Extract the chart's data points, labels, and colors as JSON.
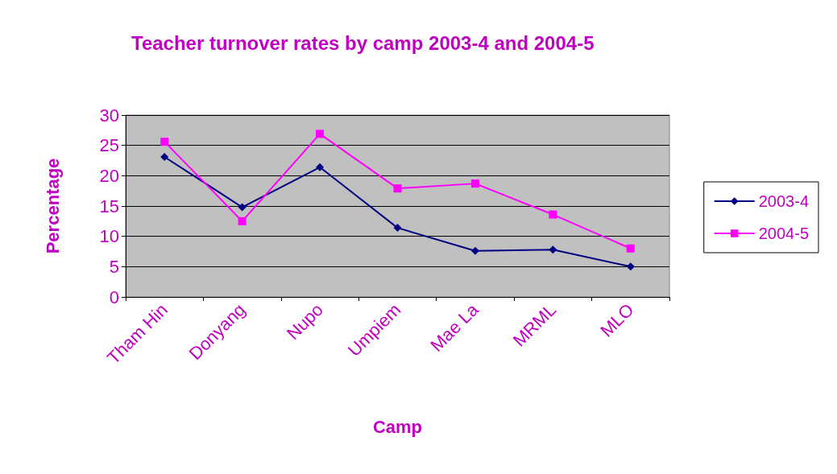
{
  "chart_data": {
    "type": "line",
    "title": "Teacher turnover rates by camp 2003-4 and 2004-5",
    "xlabel": "Camp",
    "ylabel": "Percentage",
    "categories": [
      "Tham Hin",
      "Donyang",
      "Nupo",
      "Umpiem",
      "Mae La",
      "MRML",
      "MLO"
    ],
    "series": [
      {
        "name": "2003-4",
        "color": "#000080",
        "marker": "diamond",
        "values": [
          23.1,
          14.8,
          21.4,
          11.4,
          7.6,
          7.8,
          5.0
        ]
      },
      {
        "name": "2004-5",
        "color": "#ff00ff",
        "marker": "square",
        "values": [
          25.6,
          12.5,
          26.9,
          17.9,
          18.7,
          13.6,
          8.0
        ]
      }
    ],
    "ylim": [
      0,
      30
    ],
    "yticks": [
      0,
      5,
      10,
      15,
      20,
      25,
      30
    ],
    "grid": "y",
    "legend": "right",
    "line_style": "solid"
  }
}
